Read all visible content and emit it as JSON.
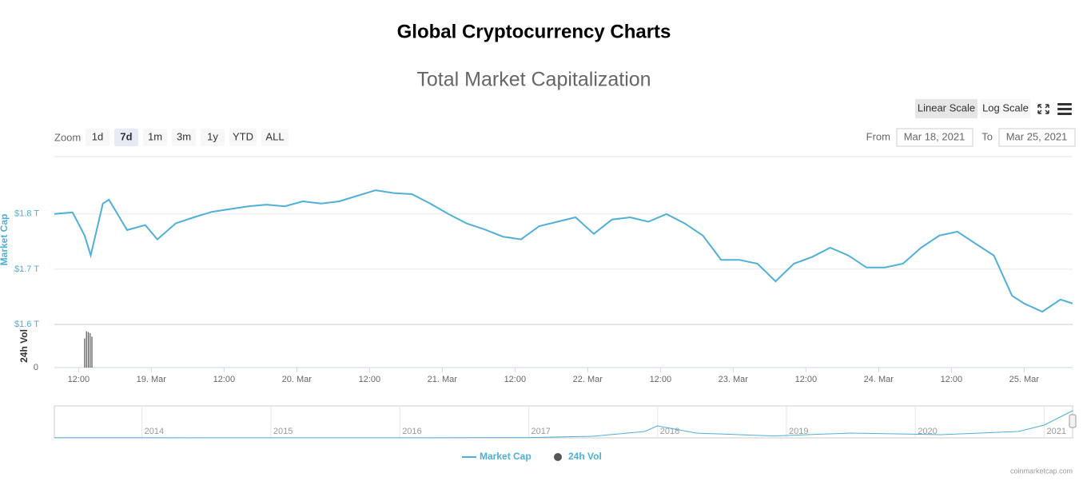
{
  "page_title": "Global Cryptocurrency Charts",
  "chart_data": {
    "type": "line",
    "title": "Total Market Capitalization",
    "scale_buttons": [
      "Linear Scale",
      "Log Scale"
    ],
    "scale_selected": 0,
    "zoom_label": "Zoom",
    "zoom_buttons": [
      "1d",
      "7d",
      "1m",
      "3m",
      "1y",
      "YTD",
      "ALL"
    ],
    "zoom_selected": 1,
    "from_label": "From",
    "from_date": "Mar 18, 2021",
    "to_label": "To",
    "to_date": "Mar 25, 2021",
    "y_label": "Market Cap",
    "y2_label": "24h Vol",
    "xlim": [
      8,
      176
    ],
    "xticks": [
      {
        "value": 12,
        "label": "12:00"
      },
      {
        "value": 24,
        "label": "19. Mar"
      },
      {
        "value": 36,
        "label": "12:00"
      },
      {
        "value": 48,
        "label": "20. Mar"
      },
      {
        "value": 60,
        "label": "12:00"
      },
      {
        "value": 72,
        "label": "21. Mar"
      },
      {
        "value": 84,
        "label": "12:00"
      },
      {
        "value": 96,
        "label": "22. Mar"
      },
      {
        "value": 108,
        "label": "12:00"
      },
      {
        "value": 120,
        "label": "23. Mar"
      },
      {
        "value": 132,
        "label": "12:00"
      },
      {
        "value": 144,
        "label": "24. Mar"
      },
      {
        "value": 156,
        "label": "12:00"
      },
      {
        "value": 168,
        "label": "25. Mar"
      }
    ],
    "ylim": [
      1.6,
      1.904
    ],
    "yticks": [
      {
        "value": 1.6,
        "label": "$1.6 T"
      },
      {
        "value": 1.7,
        "label": "$1.7 T"
      },
      {
        "value": 1.8,
        "label": "$1.8 T"
      }
    ],
    "y2lim": [
      0,
      0.22
    ],
    "y2ticks": [
      0
    ],
    "grid": true,
    "series": [
      {
        "name": "Market Cap",
        "color": "#4fafd8",
        "x": [
          8,
          11,
          13,
          14,
          16,
          17,
          20,
          23,
          25,
          28,
          31,
          34,
          37,
          40,
          43,
          46,
          49,
          52,
          55,
          58,
          61,
          64,
          67,
          70,
          73,
          76,
          79,
          82,
          85,
          88,
          91,
          94,
          97,
          100,
          103,
          106,
          109,
          112,
          115,
          118,
          121,
          124,
          127,
          130,
          133,
          136,
          139,
          142,
          145,
          148,
          151,
          154,
          157,
          160,
          163,
          166,
          168,
          171,
          174,
          176
        ],
        "values": [
          1.8,
          1.803,
          1.761,
          1.725,
          1.819,
          1.826,
          1.771,
          1.78,
          1.754,
          1.783,
          1.794,
          1.804,
          1.809,
          1.814,
          1.817,
          1.814,
          1.823,
          1.819,
          1.823,
          1.833,
          1.843,
          1.838,
          1.836,
          1.819,
          1.8,
          1.783,
          1.772,
          1.759,
          1.754,
          1.778,
          1.786,
          1.794,
          1.764,
          1.79,
          1.794,
          1.786,
          1.8,
          1.783,
          1.761,
          1.717,
          1.717,
          1.71,
          1.678,
          1.71,
          1.722,
          1.739,
          1.725,
          1.703,
          1.703,
          1.71,
          1.739,
          1.761,
          1.768,
          1.746,
          1.725,
          1.652,
          1.638,
          1.623,
          1.645,
          1.638
        ]
      },
      {
        "name": "24h Vol",
        "color": "#555555",
        "axis": "y2",
        "x": [
          13,
          13.3,
          13.6,
          13.9,
          14.2
        ],
        "values": [
          0.16,
          0.2,
          0.195,
          0.19,
          0.17
        ]
      }
    ],
    "navigator": {
      "xlim": [
        2013.32,
        2021.22
      ],
      "ylim": [
        0,
        1.9
      ],
      "xticks": [
        2014,
        2015,
        2016,
        2017,
        2018,
        2019,
        2020,
        2021
      ],
      "x": [
        2013.32,
        2014,
        2015,
        2016,
        2017,
        2017.5,
        2017.9,
        2018.0,
        2018.3,
        2018.9,
        2019.5,
        2020.2,
        2020.8,
        2021.0,
        2021.22
      ],
      "values": [
        0.01,
        0.01,
        0.005,
        0.007,
        0.018,
        0.1,
        0.4,
        0.75,
        0.3,
        0.12,
        0.3,
        0.2,
        0.4,
        0.8,
        1.7
      ]
    },
    "credit": "coinmarketcap.com"
  }
}
